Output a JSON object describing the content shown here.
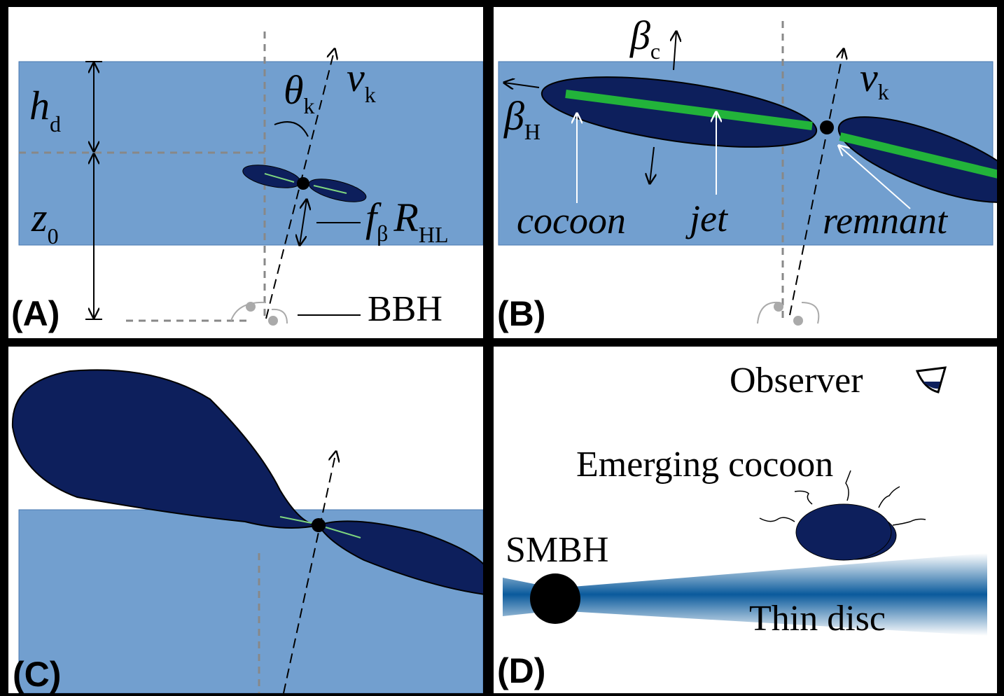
{
  "panel_a": {
    "label": "(A)",
    "h_d": {
      "symbol": "h",
      "subscript": "d"
    },
    "theta_k": {
      "symbol": "θ",
      "subscript": "k"
    },
    "v_k": {
      "symbol": "v",
      "subscript": "k"
    },
    "z_0": {
      "symbol": "z",
      "subscript": "0"
    },
    "f_r": {
      "symbol": "f",
      "subscript": "β",
      "symbol_2": "R",
      "subscript_2": "HL"
    },
    "bbh": "BBH"
  },
  "panel_b": {
    "label": "(B)",
    "beta_c": {
      "symbol": "β",
      "subscript": "c"
    },
    "beta_h": {
      "symbol": "β",
      "subscript": "H"
    },
    "v_k": {
      "symbol": "v",
      "subscript": "k"
    },
    "cocoon": "cocoon",
    "jet": "jet",
    "remnant": "remnant"
  },
  "panel_c": {
    "label": "(C)"
  },
  "panel_d": {
    "label": "(D)",
    "observer": "Observer",
    "emerging": "Emerging cocoon",
    "smbh": "SMBH",
    "disc": "Thin disc"
  }
}
